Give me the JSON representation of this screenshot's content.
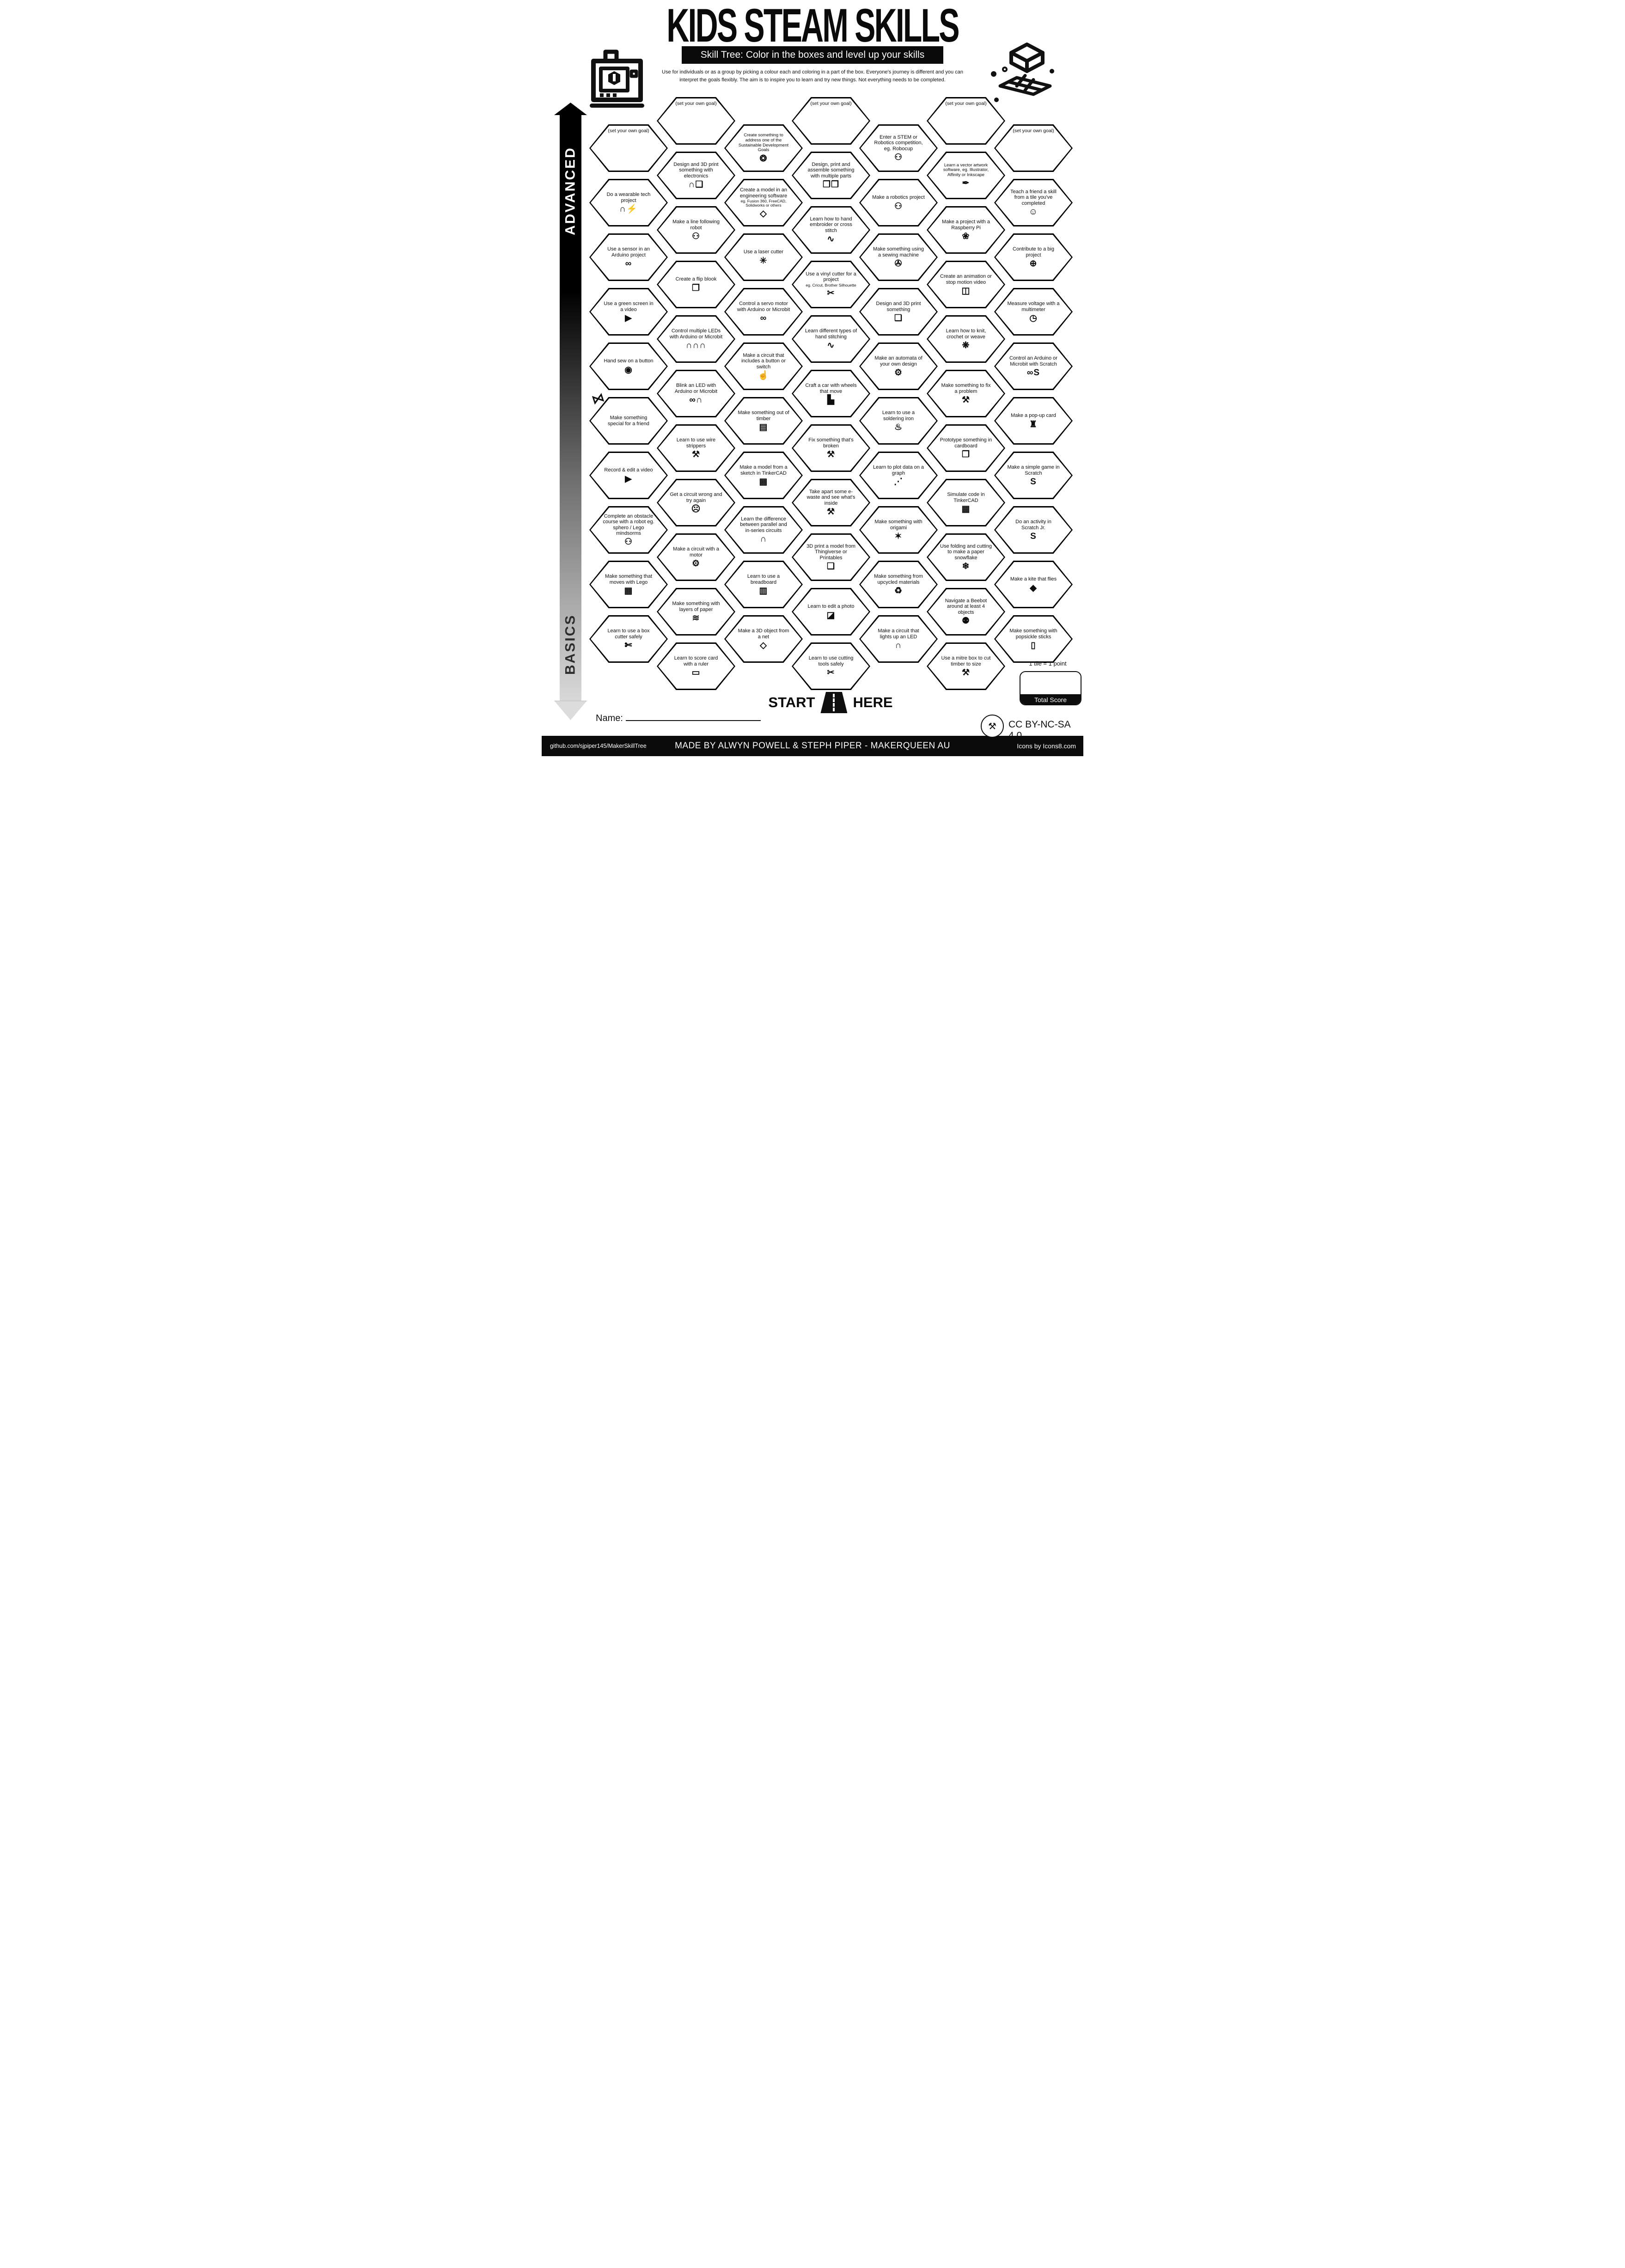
{
  "header": {
    "title": "KIDS STEAM SKILLS",
    "subtitle": "Skill Tree:  Color in the boxes and level up your skills",
    "desc_line1": "Use for individuals or as a group by picking a colour each and coloring in a part of the box.  Everyone's journey is different and you can",
    "desc_line2": "interpret the goals flexibly.  The aim is to inspire you to learn and try new things. Not everything needs to be completed."
  },
  "level_arrow": {
    "top_label": "ADVANCED",
    "bottom_label": "BASICS"
  },
  "icon_glyphs": {
    "wearable-led": "∩⚡",
    "arduino": "∞",
    "video-play": "▶",
    "button": "◉",
    "gift-bow": "⋈",
    "robot": "⚇",
    "lego-brick": "▦",
    "box-cutter": "✄",
    "led-printer": "∩❏",
    "flip-book": "❐",
    "multi-led": "∩∩∩",
    "blink-led": "∞∩",
    "wire-strippers": "⚒",
    "facepalm": "☹",
    "motor": "⚙",
    "paper-layers": "≋",
    "ruler": "▭",
    "sdg-ring": "❂",
    "cad-cube": "◇",
    "laser": "✳",
    "pointing-finger": "☝",
    "timber": "▤",
    "tinkercad": "▦",
    "led": "∩",
    "breadboard": "▥",
    "net-cube": "◇",
    "cubes": "❒❒",
    "embroidery": "∿",
    "vinyl-cutter": "✂",
    "stitching": "∿",
    "car": "▙",
    "tools": "⚒",
    "printer-3d": "❏",
    "photo": "◪",
    "cutting-scissors": "✂",
    "sewing-machine": "✇",
    "gears": "⚙",
    "soldering-iron": "♨",
    "graph": "⋰",
    "origami": "✶",
    "recycle": "♻",
    "vector-pen": "✒",
    "raspberry": "❀",
    "animation": "◫",
    "knitting": "❋",
    "cardboard-box": "❒",
    "snowflake": "❄",
    "beebot": "⚉",
    "mitre-saw": "⚒",
    "teach-friends": "☺",
    "globe": "⊕",
    "multimeter": "◷",
    "arduino-scratch": "∞S",
    "pop-up-card": "♜",
    "scratch": "S",
    "scratch-jr": "S",
    "kite": "◆",
    "popsicle": "▯"
  },
  "columns": [
    {
      "name": "column-1",
      "tiles": [
        {
          "label": "(set your own goal)",
          "goal": true
        },
        {
          "label": "Do a wearable tech project",
          "icon": "wearable-led"
        },
        {
          "label": "Use a sensor in an Arduino project",
          "icon": "arduino"
        },
        {
          "label": "Use a green screen in a video",
          "icon": "video-play"
        },
        {
          "label": "Hand sew on a button",
          "icon": "button"
        },
        {
          "label": "Make something special for a friend",
          "decor": "bow"
        },
        {
          "label": "Record & edit a video",
          "icon": "video-play"
        },
        {
          "label": "Complete an obstacle course with a robot eg. sphero / Lego mindsorms",
          "icon": "robot"
        },
        {
          "label": "Make something that moves with Lego",
          "icon": "lego-brick"
        },
        {
          "label": "Learn to use a box cutter safely",
          "icon": "box-cutter"
        }
      ]
    },
    {
      "name": "column-2",
      "tiles": [
        {
          "label": "(set your own goal)",
          "goal": true
        },
        {
          "label": "Design and 3D print something with electronics",
          "icon": "led-printer"
        },
        {
          "label": "Make a line following robot",
          "icon": "robot"
        },
        {
          "label": "Create a flip blook",
          "icon": "flip-book"
        },
        {
          "label": "Control multiple LEDs with Arduino or Microbit",
          "icon": "multi-led"
        },
        {
          "label": "Blink an LED with Arduino or Microbit",
          "icon": "blink-led"
        },
        {
          "label": "Learn to use wire strippers",
          "icon": "wire-strippers"
        },
        {
          "label": "Get a circuit wrong and try again",
          "icon": "facepalm"
        },
        {
          "label": "Make a circuit with a motor",
          "icon": "motor"
        },
        {
          "label": "Make something with layers of paper",
          "icon": "paper-layers"
        },
        {
          "label": "Learn to score card with a ruler",
          "icon": "ruler"
        }
      ]
    },
    {
      "name": "column-3",
      "tiles": [
        {
          "label": "Create something to address one of the Sustainable Development Goals",
          "icon": "sdg-ring",
          "size": "s"
        },
        {
          "label": "Create a model in an engineering software",
          "sub": "eg. Fusion 360, FreeCAD, Solidworks or others",
          "icon": "cad-cube"
        },
        {
          "label": "Use a laser cutter",
          "icon": "laser"
        },
        {
          "label": "Control a servo motor with Arduino or Microbit",
          "icon": "arduino"
        },
        {
          "label": "Make a circuit that includes a button or switch",
          "icon": "pointing-finger"
        },
        {
          "label": "Make something out of timber",
          "icon": "timber"
        },
        {
          "label": "Make a model from a sketch in TinkerCAD",
          "icon": "tinkercad"
        },
        {
          "label": "Learn the difference between parallel and in-series circuits",
          "icon": "led"
        },
        {
          "label": "Learn to use a breadboard",
          "icon": "breadboard"
        },
        {
          "label": "Make a 3D object from a net",
          "icon": "net-cube"
        }
      ]
    },
    {
      "name": "column-4",
      "tiles": [
        {
          "label": "(set your own goal)",
          "goal": true
        },
        {
          "label": "Design, print and assemble something with multiple parts",
          "icon": "cubes"
        },
        {
          "label": "Learn how to hand embroider or cross stitch",
          "icon": "embroidery"
        },
        {
          "label": "Use a vinyl cutter for a project",
          "sub": "eg. Cricut, Brother Silhouette",
          "icon": "vinyl-cutter"
        },
        {
          "label": "Learn different types of hand stitching",
          "icon": "stitching"
        },
        {
          "label": "Craft a car with wheels that move",
          "icon": "car"
        },
        {
          "label": "Fix something that's broken",
          "icon": "tools"
        },
        {
          "label": "Take apart some e-waste and see what's inside",
          "icon": "tools"
        },
        {
          "label": "3D print a model from Thingiverse or Printables",
          "icon": "printer-3d"
        },
        {
          "label": "Learn to edit a photo",
          "icon": "photo"
        },
        {
          "label": "Learn to use cutting tools safely",
          "icon": "cutting-scissors"
        }
      ]
    },
    {
      "name": "column-5",
      "tiles": [
        {
          "label": "Enter a STEM or Robotics competition, eg. Robocup",
          "icon": "robot"
        },
        {
          "label": "Make a robotics project",
          "icon": "robot"
        },
        {
          "label": "Make something using a sewing machine",
          "icon": "sewing-machine"
        },
        {
          "label": "Design and 3D print something",
          "icon": "printer-3d"
        },
        {
          "label": "Make an automata of your own design",
          "icon": "gears"
        },
        {
          "label": "Learn to use a soldering iron",
          "icon": "soldering-iron"
        },
        {
          "label": "Learn to plot data on a graph",
          "icon": "graph"
        },
        {
          "label": "Make something with origami",
          "icon": "origami"
        },
        {
          "label": "Make something from upcycled materials",
          "icon": "recycle"
        },
        {
          "label": "Make a circuit that lights up an LED",
          "icon": "led"
        }
      ]
    },
    {
      "name": "column-6",
      "tiles": [
        {
          "label": "(set your own goal)",
          "goal": true
        },
        {
          "label": "Learn a vector artwork software, eg. Illustrator, Affinity or Inkscape",
          "icon": "vector-pen",
          "size": "s"
        },
        {
          "label": "Make a project with a Raspberry Pi",
          "icon": "raspberry"
        },
        {
          "label": "Create an animation or stop motion video",
          "icon": "animation"
        },
        {
          "label": "Learn how to knit, crochet or weave",
          "icon": "knitting"
        },
        {
          "label": "Make something to fix a problem",
          "icon": "tools"
        },
        {
          "label": "Prototype something in cardboard",
          "icon": "cardboard-box"
        },
        {
          "label": "Simulate code in TinkerCAD",
          "icon": "tinkercad"
        },
        {
          "label": "Use folding and cutting to make a paper snowflake",
          "icon": "snowflake"
        },
        {
          "label": "Navigate a Beebot around at least 4 objects",
          "icon": "beebot"
        },
        {
          "label": "Use a mitre box to cut timber to size",
          "icon": "mitre-saw"
        }
      ]
    },
    {
      "name": "column-7",
      "tiles": [
        {
          "label": "(set your own goal)",
          "goal": true
        },
        {
          "label": "Teach a friend a skill from a tile you've completed",
          "icon": "teach-friends"
        },
        {
          "label": "Contribute to a big project",
          "icon": "globe"
        },
        {
          "label": "Measure voltage with a multimeter",
          "icon": "multimeter"
        },
        {
          "label": "Control an Arduino or Microbit with Scratch",
          "icon": "arduino-scratch"
        },
        {
          "label": "Make a pop-up card",
          "icon": "pop-up-card"
        },
        {
          "label": "Make a simple game in Scratch",
          "icon": "scratch"
        },
        {
          "label": "Do an activity in Scratch Jr.",
          "icon": "scratch-jr"
        },
        {
          "label": "Make a kite that flies",
          "icon": "kite"
        },
        {
          "label": "Make something with popsickle sticks",
          "icon": "popsicle"
        }
      ]
    }
  ],
  "start_here": {
    "start": "START",
    "here": "HERE"
  },
  "name_field": {
    "label": "Name:"
  },
  "score": {
    "note": "1 tile = 1 point",
    "label": "Total Score"
  },
  "license": {
    "text": "CC BY-NC-SA 4.0"
  },
  "footer": {
    "left": "github.com/sjpiper145/MakerSkillTree",
    "center": "MADE BY ALWYN POWELL & STEPH PIPER  -  MAKERQUEEN AU",
    "right": "Icons by Icons8.com"
  },
  "colors": {
    "ink": "#0d0d0d",
    "paper": "#ffffff"
  }
}
